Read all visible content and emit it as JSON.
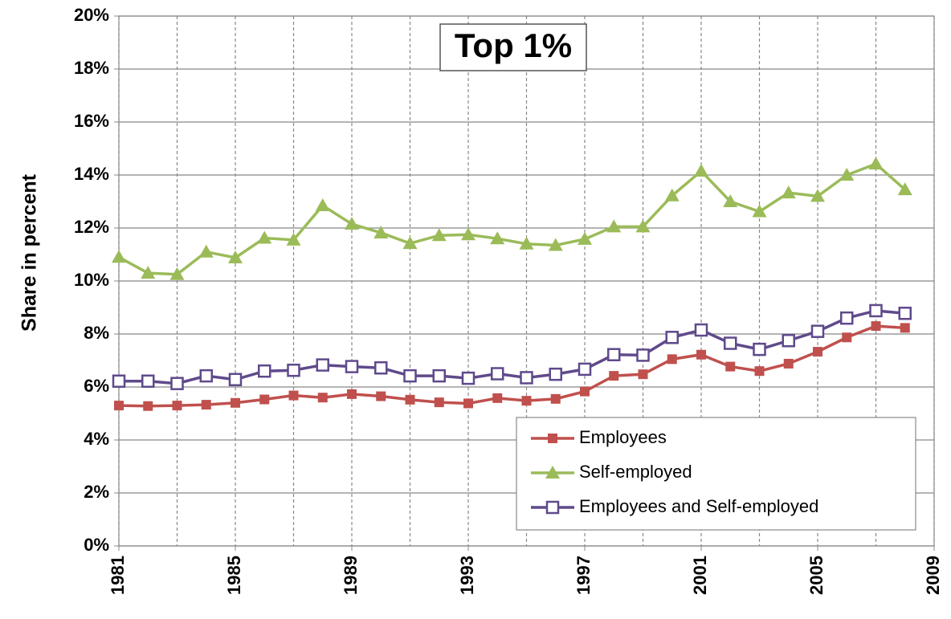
{
  "chart_data": {
    "type": "line",
    "title": "Top 1%",
    "ylabel": "Share in percent",
    "x": [
      1981,
      1982,
      1983,
      1984,
      1985,
      1986,
      1987,
      1988,
      1989,
      1990,
      1991,
      1992,
      1993,
      1994,
      1995,
      1996,
      1997,
      1998,
      1999,
      2000,
      2001,
      2002,
      2003,
      2004,
      2005,
      2006,
      2007,
      2008
    ],
    "series": [
      {
        "name": "Employees",
        "color": "#c0504d",
        "marker": "square",
        "values": [
          5.3,
          5.28,
          5.3,
          5.33,
          5.4,
          5.53,
          5.68,
          5.6,
          5.73,
          5.65,
          5.52,
          5.42,
          5.38,
          5.58,
          5.48,
          5.55,
          5.83,
          6.42,
          6.48,
          7.05,
          7.22,
          6.77,
          6.6,
          6.88,
          7.33,
          7.87,
          8.3,
          8.23
        ]
      },
      {
        "name": "Self-employed",
        "color": "#9bbb59",
        "marker": "triangle",
        "values": [
          10.9,
          10.3,
          10.25,
          11.1,
          10.88,
          11.62,
          11.55,
          12.85,
          12.15,
          11.82,
          11.42,
          11.72,
          11.75,
          11.6,
          11.4,
          11.35,
          11.58,
          12.05,
          12.05,
          13.22,
          14.15,
          13.0,
          12.62,
          13.33,
          13.2,
          14.0,
          14.42,
          13.45
        ]
      },
      {
        "name": "Employees and Self-employed",
        "color": "#5f4a8b",
        "marker": "open-square",
        "values": [
          6.22,
          6.22,
          6.13,
          6.42,
          6.28,
          6.6,
          6.63,
          6.83,
          6.77,
          6.72,
          6.42,
          6.42,
          6.33,
          6.5,
          6.35,
          6.48,
          6.67,
          7.22,
          7.2,
          7.87,
          8.15,
          7.65,
          7.42,
          7.75,
          8.1,
          8.6,
          8.88,
          8.78
        ]
      }
    ],
    "xlim": [
      1981,
      2009
    ],
    "xticks": [
      1981,
      1985,
      1989,
      1993,
      1997,
      2001,
      2005,
      2009
    ],
    "xgrid": [
      1981,
      1983,
      1985,
      1987,
      1989,
      1991,
      1993,
      1995,
      1997,
      1999,
      2001,
      2003,
      2005,
      2007,
      2009
    ],
    "ylim": [
      0,
      20
    ],
    "yticks": [
      {
        "value": 0,
        "label": "0%"
      },
      {
        "value": 2,
        "label": "2%"
      },
      {
        "value": 4,
        "label": "4%"
      },
      {
        "value": 6,
        "label": "6%"
      },
      {
        "value": 8,
        "label": "8%"
      },
      {
        "value": 10,
        "label": "10%"
      },
      {
        "value": 12,
        "label": "12%"
      },
      {
        "value": 14,
        "label": "14%"
      },
      {
        "value": 16,
        "label": "16%"
      },
      {
        "value": 18,
        "label": "18%"
      },
      {
        "value": 20,
        "label": "20%"
      }
    ],
    "grid": true,
    "legend": "lower right"
  }
}
